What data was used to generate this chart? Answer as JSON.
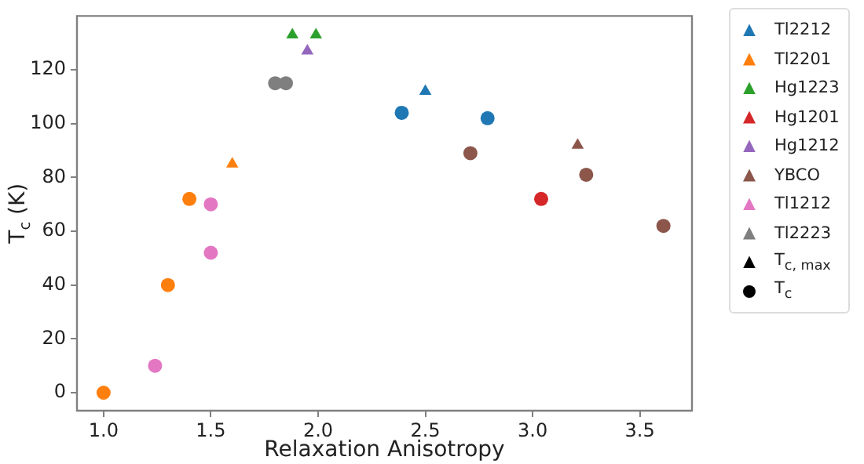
{
  "chart_data": {
    "type": "scatter",
    "xlabel": "Relaxation Anisotropy",
    "ylabel": "T$_{c}$ (K)",
    "xlim": [
      0.876,
      3.743
    ],
    "xticks": [
      {
        "value": 1,
        "label": "1.0"
      },
      1.5,
      {
        "value": 2,
        "label": "2.0"
      },
      2.5,
      {
        "value": 3,
        "label": "3.0"
      },
      3.5
    ],
    "ylim": [
      -6.7,
      140
    ],
    "yticks": [
      0,
      20,
      40,
      60,
      80,
      100,
      120
    ],
    "legend": "right",
    "series": [
      {
        "name": "Tl2212",
        "color": "#1f77b4",
        "marker": "triangle",
        "x": [
          2.5
        ],
        "values": [
          112
        ]
      },
      {
        "name": "Tl2201",
        "color": "#ff7f0e",
        "marker": "triangle",
        "x": [
          1.6
        ],
        "values": [
          85
        ]
      },
      {
        "name": "Hg1223",
        "color": "#2ca02c",
        "marker": "triangle",
        "x": [
          1.88,
          1.99
        ],
        "values": [
          133,
          133
        ]
      },
      {
        "name": "Hg1201",
        "color": "#d62728",
        "marker": "triangle"
      },
      {
        "name": "Hg1212",
        "color": "#9467bd",
        "marker": "triangle",
        "x": [
          1.95
        ],
        "values": [
          127
        ]
      },
      {
        "name": "YBCO",
        "color": "#8c564b",
        "marker": "triangle",
        "x": [
          3.21
        ],
        "values": [
          92
        ]
      },
      {
        "name": "Tl1212",
        "color": "#e377c2",
        "marker": "triangle"
      },
      {
        "name": "Tl2223",
        "color": "#7f7f7f",
        "marker": "triangle"
      },
      {
        "name": "T$_{c, max}$",
        "color": "#000000",
        "marker": "triangle"
      },
      {
        "name": "T$_{c}$",
        "color": "#000000",
        "marker": "circle"
      },
      {
        "color": "#1f77b4",
        "marker": "circle",
        "x": [
          2.39,
          2.79
        ],
        "values": [
          104,
          102
        ]
      },
      {
        "color": "#ff7f0e",
        "marker": "circle",
        "x": [
          1.0,
          1.3,
          1.4
        ],
        "values": [
          0,
          40,
          72
        ]
      },
      {
        "color": "#d62728",
        "marker": "circle",
        "x": [
          3.04
        ],
        "values": [
          72
        ]
      },
      {
        "color": "#8c564b",
        "marker": "circle",
        "x": [
          2.71,
          3.25,
          3.61
        ],
        "values": [
          89,
          81,
          62
        ]
      },
      {
        "color": "#e377c2",
        "marker": "circle",
        "x": [
          1.24,
          1.5,
          1.5
        ],
        "values": [
          10,
          70,
          52
        ]
      },
      {
        "color": "#7f7f7f",
        "marker": "circle",
        "x": [
          1.8,
          1.85
        ],
        "values": [
          115,
          115
        ]
      }
    ]
  }
}
